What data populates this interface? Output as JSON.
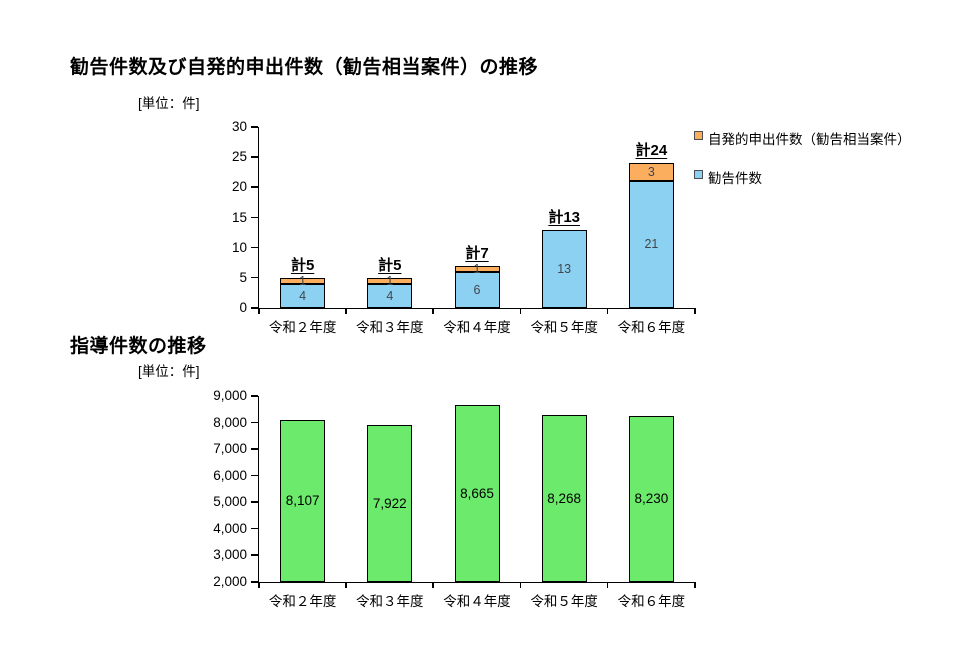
{
  "page": {
    "background": "#FFFFFF"
  },
  "charts": [
    {
      "title": "勧告件数及び自発的申出件数（勧告相当案件）の推移",
      "unit_label": "[単位：件]",
      "legend": [
        {
          "label": "自発的申出件数（勧告相当案件）",
          "color": "#FBAE5E"
        },
        {
          "label": "勧告件数",
          "color": "#8DD1F2"
        }
      ]
    },
    {
      "title": "指導件数の推移",
      "unit_label": "[単位：件]"
    }
  ],
  "chart_data": [
    {
      "type": "bar",
      "stacked": true,
      "title": "勧告件数及び自発的申出件数（勧告相当案件）の推移",
      "unit": "件",
      "categories": [
        "令和２年度",
        "令和３年度",
        "令和４年度",
        "令和５年度",
        "令和６年度"
      ],
      "series": [
        {
          "name": "勧告件数",
          "color": "#8DD1F2",
          "values": [
            4,
            4,
            6,
            13,
            21
          ]
        },
        {
          "name": "自発的申出件数（勧告相当案件）",
          "color": "#FBAE5E",
          "values": [
            1,
            1,
            1,
            0,
            3
          ]
        }
      ],
      "total_labels": [
        "計5",
        "計5",
        "計7",
        "計13",
        "計24"
      ],
      "ylim": [
        0,
        30
      ],
      "ytick_step": 5,
      "yticks": [
        "0",
        "5",
        "10",
        "15",
        "20",
        "25",
        "30"
      ],
      "grid": false,
      "legend_position": "top-right",
      "inside_label_color": "#40464C"
    },
    {
      "type": "bar",
      "stacked": false,
      "title": "指導件数の推移",
      "unit": "件",
      "categories": [
        "令和２年度",
        "令和３年度",
        "令和４年度",
        "令和５年度",
        "令和６年度"
      ],
      "series": [
        {
          "name": "指導件数",
          "color": "#6BEA6B",
          "values": [
            8107,
            7922,
            8665,
            8268,
            8230
          ]
        }
      ],
      "value_labels": [
        "8,107",
        "7,922",
        "8,665",
        "8,268",
        "8,230"
      ],
      "ylim": [
        2000,
        9000
      ],
      "ytick_step": 1000,
      "yticks": [
        "2,000",
        "3,000",
        "4,000",
        "5,000",
        "6,000",
        "7,000",
        "8,000",
        "9,000"
      ],
      "grid": false,
      "inside_label_color": "#000000"
    }
  ]
}
